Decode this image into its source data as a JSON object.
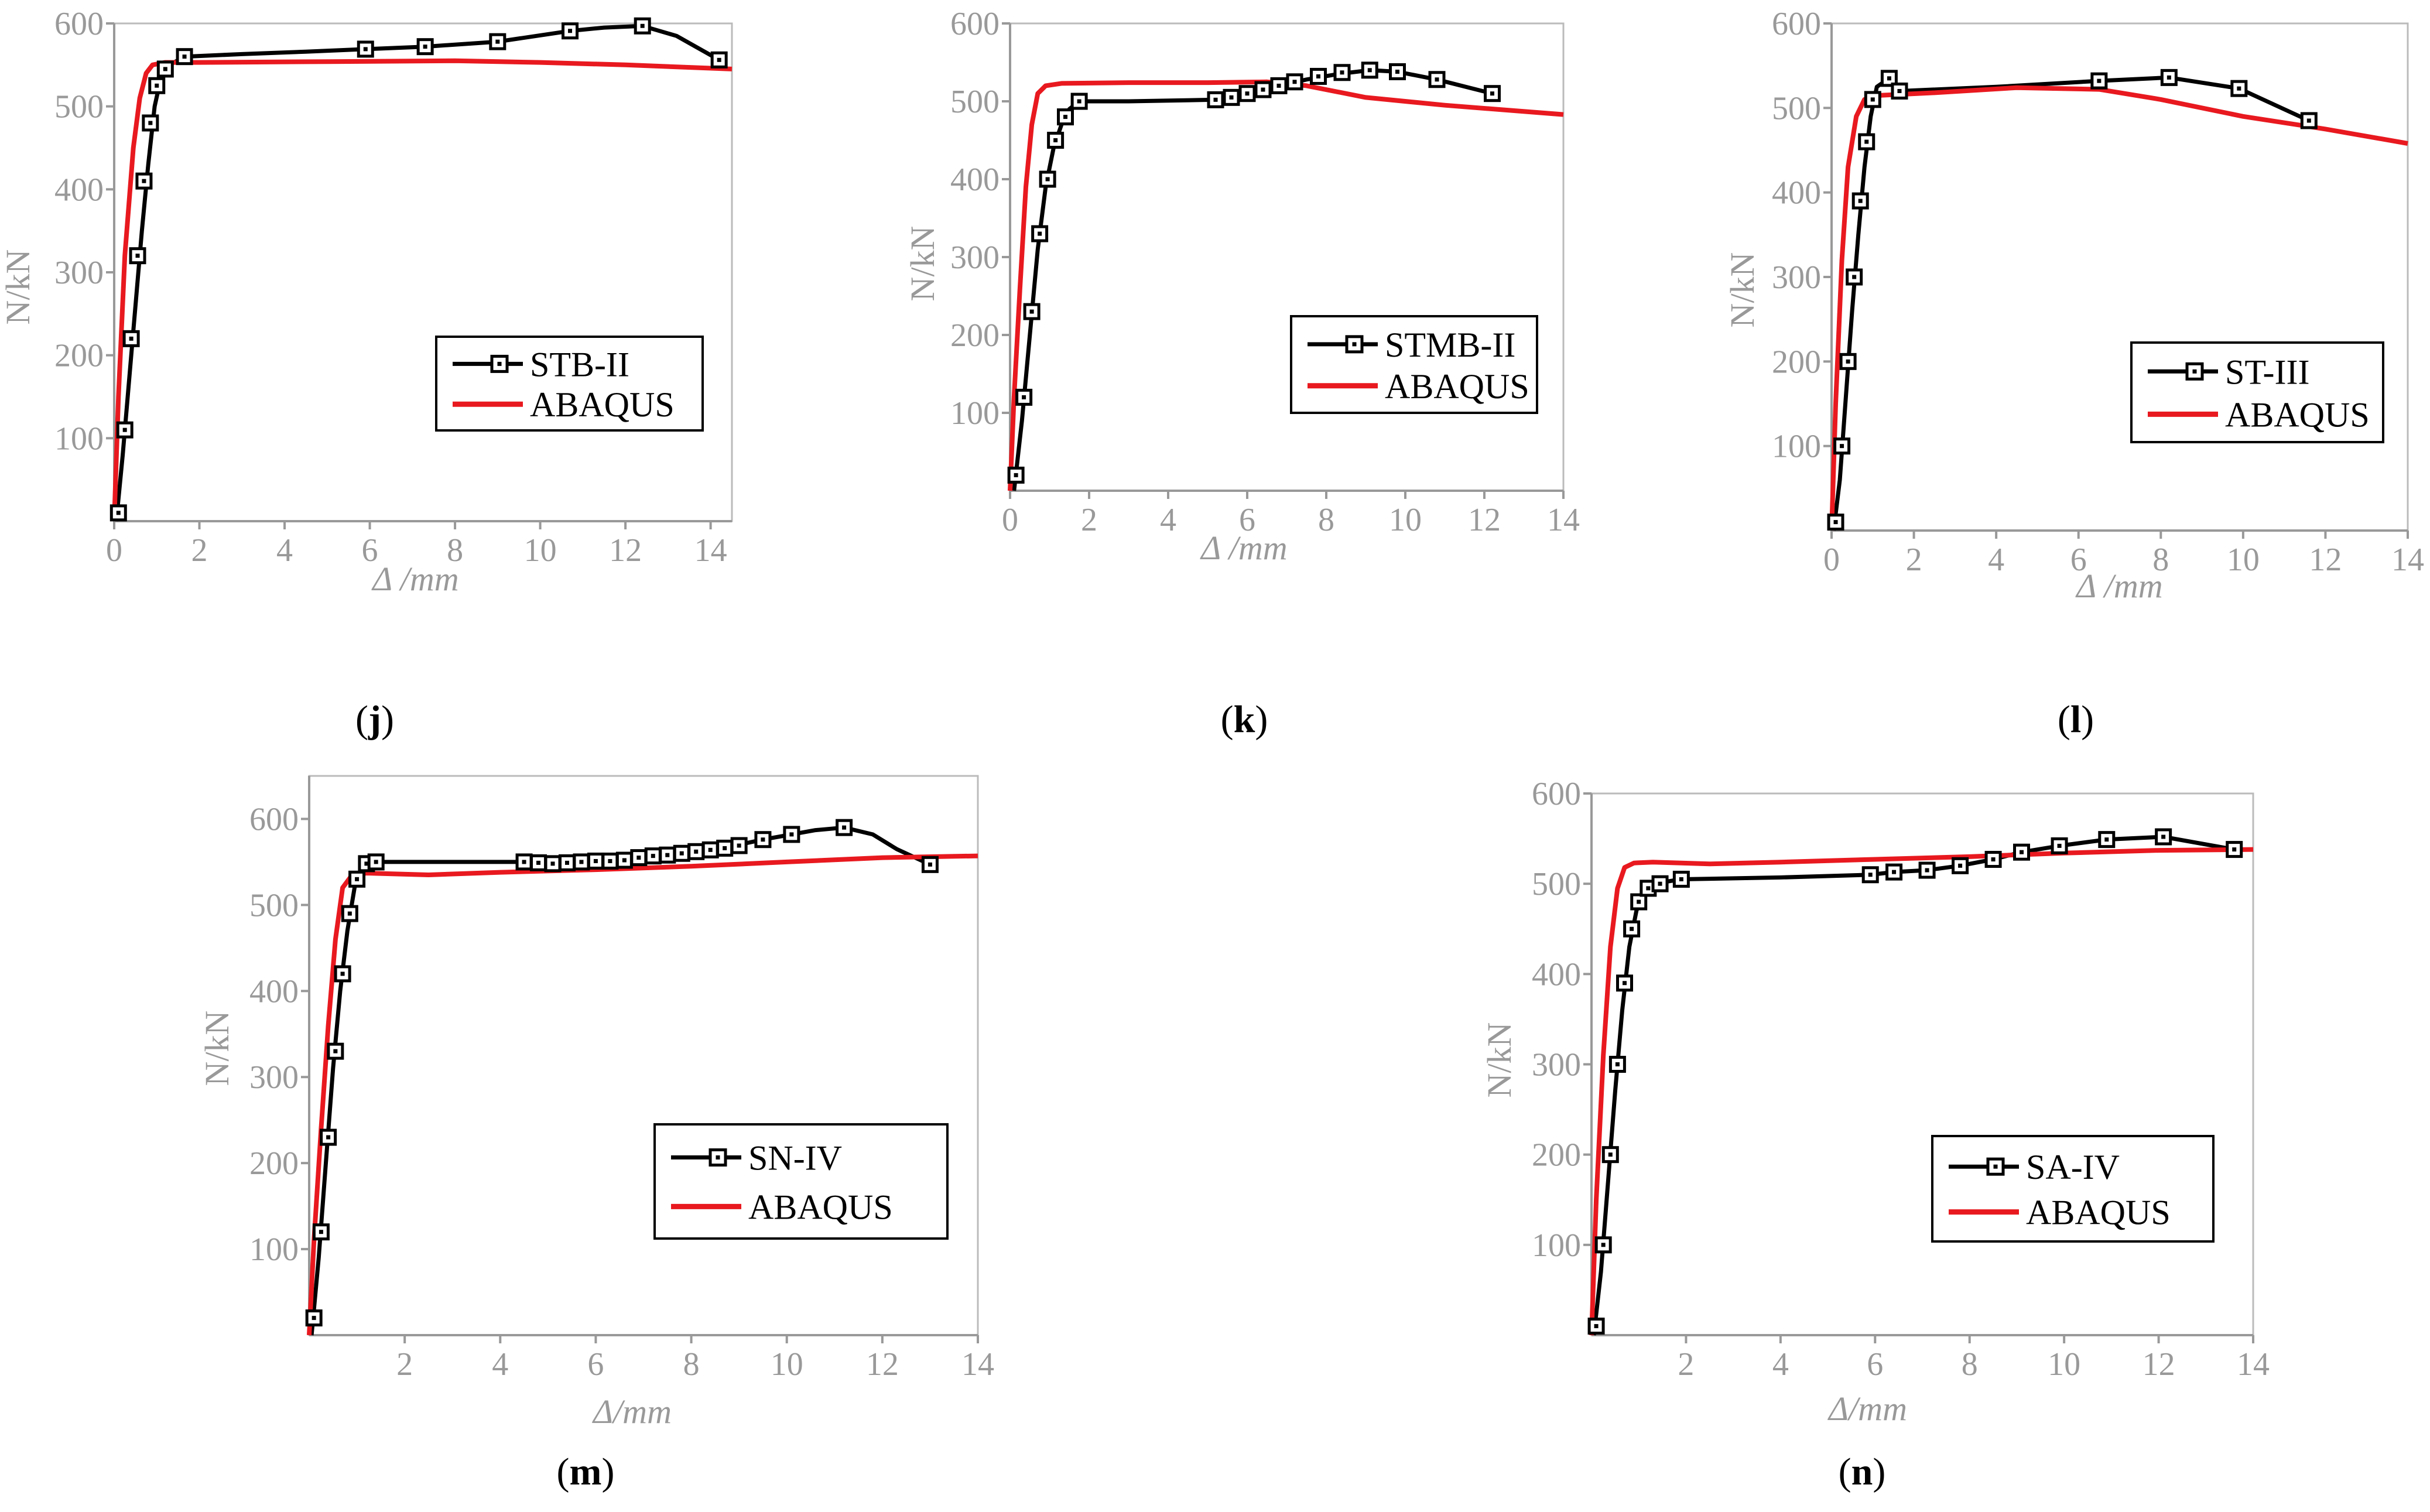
{
  "figure": {
    "panel_labels": [
      "j",
      "k",
      "l",
      "m",
      "n"
    ],
    "colors": {
      "experiment": "#000000",
      "abaqus": "#e8191f",
      "axis": "#999999",
      "label": "#000000"
    }
  },
  "chart_data": [
    {
      "type": "line",
      "label": "j",
      "xlabel": "Δ /mm",
      "ylabel": "N/kN",
      "xlim": [
        0,
        14.5
      ],
      "ylim": [
        0,
        600
      ],
      "xticks": [
        0,
        2,
        4,
        6,
        8,
        10,
        12,
        14
      ],
      "yticks": [
        100,
        200,
        300,
        400,
        500,
        600
      ],
      "legend": {
        "position": "right",
        "entries": [
          "STB-II",
          "ABAQUS"
        ]
      },
      "series": [
        {
          "name": "STB-II",
          "style": "line-square",
          "x": [
            0.05,
            0.2,
            0.35,
            0.5,
            0.65,
            0.8,
            0.95,
            1.1,
            1.3,
            1.65,
            3.0,
            4.5,
            5.9,
            7.3,
            9.0,
            10.7,
            11.5,
            12.4,
            13.2,
            14.2
          ],
          "y": [
            0,
            80,
            170,
            260,
            350,
            430,
            500,
            535,
            550,
            560,
            563,
            566,
            569,
            572,
            578,
            591,
            595,
            597,
            585,
            556
          ],
          "markers": [
            [
              0.1,
              10
            ],
            [
              0.25,
              110
            ],
            [
              0.4,
              220
            ],
            [
              0.55,
              320
            ],
            [
              0.7,
              410
            ],
            [
              0.85,
              480
            ],
            [
              1.0,
              525
            ],
            [
              1.2,
              545
            ],
            [
              1.65,
              560
            ],
            [
              5.9,
              569
            ],
            [
              7.3,
              572
            ],
            [
              9.0,
              578
            ],
            [
              10.7,
              591
            ],
            [
              12.4,
              597
            ],
            [
              14.2,
              556
            ]
          ]
        },
        {
          "name": "ABAQUS",
          "style": "line",
          "x": [
            0,
            0.1,
            0.25,
            0.45,
            0.6,
            0.75,
            0.9,
            1.2,
            2.0,
            5.0,
            8.0,
            10.0,
            12.0,
            14.5
          ],
          "y": [
            0,
            150,
            320,
            450,
            510,
            540,
            550,
            553,
            553,
            554,
            555,
            553,
            550,
            545
          ]
        }
      ]
    },
    {
      "type": "line",
      "label": "k",
      "xlabel": "Δ /mm",
      "ylabel": "N/kN",
      "xlim": [
        0,
        14
      ],
      "ylim": [
        0,
        600
      ],
      "xticks": [
        0,
        2,
        4,
        6,
        8,
        10,
        12,
        14
      ],
      "yticks": [
        100,
        200,
        300,
        400,
        500,
        600
      ],
      "legend": {
        "position": "right",
        "entries": [
          "STMB-II",
          "ABAQUS"
        ]
      },
      "series": [
        {
          "name": "STMB-II",
          "style": "line-square",
          "x": [
            0.1,
            0.3,
            0.5,
            0.7,
            0.9,
            1.1,
            1.3,
            1.5,
            1.75,
            3.0,
            5.2,
            6.0,
            6.8,
            7.5,
            8.3,
            9.1,
            9.8,
            10.8,
            12.2
          ],
          "y": [
            0,
            90,
            200,
            310,
            390,
            440,
            470,
            490,
            500,
            500,
            502,
            510,
            520,
            528,
            535,
            540,
            538,
            528,
            510
          ],
          "markers": [
            [
              0.15,
              20
            ],
            [
              0.35,
              120
            ],
            [
              0.55,
              230
            ],
            [
              0.75,
              330
            ],
            [
              0.95,
              400
            ],
            [
              1.15,
              450
            ],
            [
              1.4,
              480
            ],
            [
              1.75,
              500
            ],
            [
              5.2,
              502
            ],
            [
              5.6,
              505
            ],
            [
              6.0,
              510
            ],
            [
              6.4,
              515
            ],
            [
              6.8,
              520
            ],
            [
              7.2,
              525
            ],
            [
              7.8,
              532
            ],
            [
              8.4,
              537
            ],
            [
              9.1,
              540
            ],
            [
              9.8,
              538
            ],
            [
              10.8,
              528
            ],
            [
              12.2,
              510
            ]
          ]
        },
        {
          "name": "ABAQUS",
          "style": "line",
          "x": [
            0,
            0.1,
            0.25,
            0.4,
            0.55,
            0.7,
            0.9,
            1.3,
            3.0,
            5.0,
            6.5,
            7.5,
            9.0,
            11.0,
            14.0
          ],
          "y": [
            0,
            120,
            260,
            390,
            470,
            510,
            520,
            523,
            524,
            524,
            525,
            520,
            505,
            495,
            483
          ]
        }
      ]
    },
    {
      "type": "line",
      "label": "l",
      "xlabel": "Δ /mm",
      "ylabel": "N/kN",
      "xlim": [
        0,
        14
      ],
      "ylim": [
        0,
        600
      ],
      "xticks": [
        0,
        2,
        4,
        6,
        8,
        10,
        12,
        14
      ],
      "yticks": [
        100,
        200,
        300,
        400,
        500,
        600
      ],
      "legend": {
        "position": "right",
        "entries": [
          "ST-III",
          "ABAQUS"
        ]
      },
      "series": [
        {
          "name": "ST-III",
          "style": "line-square",
          "x": [
            0.05,
            0.2,
            0.35,
            0.5,
            0.65,
            0.8,
            0.95,
            1.1,
            1.4,
            1.65,
            4.0,
            6.5,
            8.2,
            9.9,
            11.6
          ],
          "y": [
            0,
            60,
            160,
            260,
            350,
            430,
            490,
            525,
            535,
            520,
            525,
            532,
            536,
            523,
            485
          ],
          "markers": [
            [
              0.1,
              10
            ],
            [
              0.25,
              100
            ],
            [
              0.4,
              200
            ],
            [
              0.55,
              300
            ],
            [
              0.7,
              390
            ],
            [
              0.85,
              460
            ],
            [
              1.0,
              510
            ],
            [
              1.4,
              535
            ],
            [
              1.65,
              520
            ],
            [
              6.5,
              532
            ],
            [
              8.2,
              536
            ],
            [
              9.9,
              523
            ],
            [
              11.6,
              485
            ]
          ]
        },
        {
          "name": "ABAQUS",
          "style": "line",
          "x": [
            0,
            0.1,
            0.25,
            0.4,
            0.6,
            0.8,
            1.2,
            2.5,
            4.5,
            6.5,
            8.0,
            10.0,
            12.0,
            14.0
          ],
          "y": [
            0,
            150,
            320,
            430,
            490,
            510,
            515,
            518,
            524,
            522,
            510,
            490,
            475,
            458
          ]
        }
      ]
    },
    {
      "type": "line",
      "label": "m",
      "xlabel": "Δ/mm",
      "ylabel": "N/kN",
      "xlim": [
        0,
        14
      ],
      "ylim": [
        0,
        650
      ],
      "xticks": [
        2,
        4,
        6,
        8,
        10,
        12,
        14
      ],
      "yticks": [
        100,
        200,
        300,
        400,
        500,
        600
      ],
      "legend": {
        "position": "right",
        "entries": [
          "SN-IV",
          "ABAQUS"
        ]
      },
      "series": [
        {
          "name": "SN-IV",
          "style": "line-square",
          "x": [
            0.05,
            0.2,
            0.35,
            0.5,
            0.65,
            0.8,
            0.95,
            1.1,
            1.4,
            3.0,
            4.5,
            5.0,
            5.5,
            6.0,
            6.5,
            7.0,
            7.5,
            8.0,
            8.5,
            9.0,
            9.5,
            10.1,
            10.6,
            11.2,
            11.8,
            12.3,
            13.0
          ],
          "y": [
            0,
            90,
            200,
            310,
            400,
            470,
            520,
            545,
            550,
            550,
            550,
            548,
            548,
            550,
            552,
            555,
            558,
            562,
            566,
            570,
            576,
            582,
            587,
            590,
            582,
            565,
            547
          ],
          "markers": [
            [
              0.1,
              20
            ],
            [
              0.25,
              120
            ],
            [
              0.4,
              230
            ],
            [
              0.55,
              330
            ],
            [
              0.7,
              420
            ],
            [
              0.85,
              490
            ],
            [
              1.0,
              530
            ],
            [
              1.2,
              548
            ],
            [
              1.4,
              550
            ],
            [
              4.5,
              550
            ],
            [
              4.8,
              549
            ],
            [
              5.1,
              548
            ],
            [
              5.4,
              549
            ],
            [
              5.7,
              550
            ],
            [
              6.0,
              551
            ],
            [
              6.3,
              551
            ],
            [
              6.6,
              552
            ],
            [
              6.9,
              555
            ],
            [
              7.2,
              557
            ],
            [
              7.5,
              558
            ],
            [
              7.8,
              560
            ],
            [
              8.1,
              562
            ],
            [
              8.4,
              564
            ],
            [
              8.7,
              566
            ],
            [
              9.0,
              569
            ],
            [
              9.5,
              576
            ],
            [
              10.1,
              582
            ],
            [
              11.2,
              590
            ],
            [
              13.0,
              547
            ]
          ]
        },
        {
          "name": "ABAQUS",
          "style": "line",
          "x": [
            0,
            0.1,
            0.25,
            0.4,
            0.55,
            0.7,
            0.9,
            1.2,
            2.5,
            4.0,
            6.0,
            8.0,
            10.0,
            12.0,
            14.0
          ],
          "y": [
            0,
            110,
            240,
            360,
            460,
            520,
            535,
            537,
            535,
            538,
            541,
            545,
            550,
            555,
            557
          ]
        }
      ]
    },
    {
      "type": "line",
      "label": "n",
      "xlabel": "Δ/mm",
      "ylabel": "N/kN",
      "xlim": [
        0,
        14
      ],
      "ylim": [
        0,
        600
      ],
      "xticks": [
        2,
        4,
        6,
        8,
        10,
        12,
        14
      ],
      "yticks": [
        100,
        200,
        300,
        400,
        500,
        600
      ],
      "legend": {
        "position": "right",
        "entries": [
          "SA-IV",
          "ABAQUS"
        ]
      },
      "series": [
        {
          "name": "SA-IV",
          "style": "line-square",
          "x": [
            0.05,
            0.2,
            0.35,
            0.5,
            0.65,
            0.8,
            0.95,
            1.1,
            1.3,
            1.9,
            4.0,
            5.9,
            6.4,
            7.1,
            7.8,
            8.5,
            9.1,
            9.9,
            10.9,
            12.1,
            13.6
          ],
          "y": [
            0,
            70,
            170,
            270,
            360,
            430,
            470,
            490,
            500,
            505,
            507,
            510,
            513,
            515,
            520,
            527,
            535,
            542,
            549,
            552,
            538
          ],
          "markers": [
            [
              0.1,
              10
            ],
            [
              0.25,
              100
            ],
            [
              0.4,
              200
            ],
            [
              0.55,
              300
            ],
            [
              0.7,
              390
            ],
            [
              0.85,
              450
            ],
            [
              1.0,
              480
            ],
            [
              1.2,
              495
            ],
            [
              1.45,
              500
            ],
            [
              1.9,
              505
            ],
            [
              5.9,
              510
            ],
            [
              6.4,
              513
            ],
            [
              7.1,
              515
            ],
            [
              7.8,
              520
            ],
            [
              8.5,
              527
            ],
            [
              9.1,
              535
            ],
            [
              9.9,
              542
            ],
            [
              10.9,
              549
            ],
            [
              12.1,
              552
            ],
            [
              13.6,
              538
            ]
          ]
        },
        {
          "name": "ABAQUS",
          "style": "line",
          "x": [
            0,
            0.1,
            0.25,
            0.4,
            0.55,
            0.7,
            0.9,
            1.3,
            2.5,
            4.0,
            6.0,
            8.0,
            10.0,
            12.0,
            14.0
          ],
          "y": [
            0,
            150,
            310,
            430,
            495,
            518,
            523,
            524,
            522,
            524,
            527,
            530,
            534,
            537,
            538
          ]
        }
      ]
    }
  ]
}
